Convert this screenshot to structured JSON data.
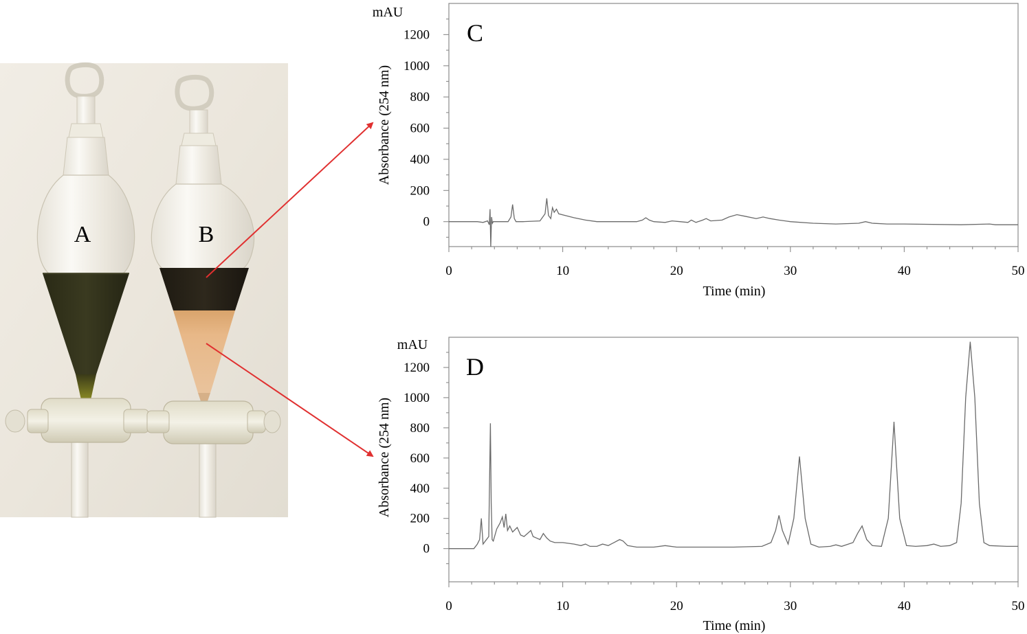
{
  "photo": {
    "labels": [
      "A",
      "B"
    ],
    "funnel_a_color": "#2c2c1a",
    "funnel_b_top_color": "#221d14",
    "funnel_b_bottom_color": "#e4b07a"
  },
  "arrow_color": "#e03030",
  "chart_data": [
    {
      "type": "line",
      "panel_label": "C",
      "title": "",
      "xlabel": "Time (min)",
      "ylabel": "Absorbance  (254 nm)",
      "y_unit": "mAU",
      "xlim": [
        0,
        50
      ],
      "ylim": [
        -160,
        1400
      ],
      "x_ticks": [
        0,
        10,
        20,
        30,
        40,
        50
      ],
      "y_ticks": [
        0,
        200,
        400,
        600,
        800,
        1000,
        1200
      ],
      "grid": false,
      "series": [
        {
          "x": [
            0,
            2.5,
            3.0,
            3.4,
            3.55,
            3.62,
            3.68,
            3.75,
            3.82,
            3.9,
            4.2,
            5.2,
            5.45,
            5.6,
            5.75,
            5.9,
            6.5,
            8.0,
            8.45,
            8.6,
            8.75,
            8.95,
            9.1,
            9.25,
            9.45,
            9.65,
            10.2,
            11.0,
            12.0,
            13.0,
            16.5,
            17.0,
            17.3,
            17.6,
            18.0,
            19.0,
            19.6,
            20.3,
            21.0,
            21.3,
            21.7,
            22.3,
            22.6,
            23.0,
            24.0,
            24.6,
            25.3,
            26.0,
            27.0,
            27.6,
            28.2,
            29.0,
            30.0,
            32.0,
            34.0,
            36.0,
            36.6,
            37.2,
            38.5,
            40.0,
            45.0,
            47.5,
            48.0,
            50.0
          ],
          "y": [
            0,
            0,
            -5,
            5,
            -20,
            80,
            -160,
            30,
            -10,
            0,
            0,
            0,
            30,
            110,
            20,
            0,
            0,
            5,
            50,
            150,
            40,
            20,
            90,
            60,
            80,
            50,
            40,
            25,
            10,
            0,
            0,
            10,
            25,
            10,
            0,
            -5,
            5,
            0,
            -5,
            10,
            -5,
            10,
            20,
            5,
            10,
            30,
            45,
            35,
            20,
            30,
            20,
            10,
            0,
            -10,
            -15,
            -10,
            0,
            -10,
            -15,
            -15,
            -20,
            -15,
            -20,
            -20
          ]
        }
      ]
    },
    {
      "type": "line",
      "panel_label": "D",
      "title": "",
      "xlabel": "Time (min)",
      "ylabel": "Absorbance  (254 nm)",
      "y_unit": "mAU",
      "xlim": [
        0,
        50
      ],
      "ylim": [
        -220,
        1400
      ],
      "x_ticks": [
        0,
        10,
        20,
        30,
        40,
        50
      ],
      "y_ticks": [
        0,
        200,
        400,
        600,
        800,
        1000,
        1200
      ],
      "grid": false,
      "series": [
        {
          "x": [
            0,
            2.2,
            2.5,
            2.7,
            2.85,
            3.0,
            3.2,
            3.5,
            3.65,
            3.72,
            3.8,
            3.9,
            4.2,
            4.5,
            4.7,
            4.85,
            5.0,
            5.15,
            5.35,
            5.6,
            6.0,
            6.3,
            6.6,
            6.9,
            7.2,
            7.4,
            7.7,
            8.0,
            8.3,
            8.6,
            8.9,
            9.3,
            10.0,
            11.0,
            11.6,
            12.0,
            12.4,
            13.0,
            13.5,
            14.0,
            14.5,
            15.0,
            15.3,
            15.7,
            16.5,
            18.0,
            19.0,
            20.0,
            25.0,
            27.5,
            28.3,
            28.7,
            29.0,
            29.3,
            29.8,
            30.3,
            30.8,
            31.3,
            31.8,
            32.5,
            33.5,
            34.0,
            34.5,
            35.5,
            35.9,
            36.3,
            36.7,
            37.2,
            38.0,
            38.6,
            39.1,
            39.6,
            40.2,
            41.0,
            42.0,
            42.6,
            43.2,
            44.0,
            44.6,
            45.0,
            45.4,
            45.8,
            46.2,
            46.6,
            47.0,
            47.5,
            49.0,
            50.0
          ],
          "y": [
            0,
            0,
            30,
            60,
            200,
            30,
            50,
            80,
            830,
            300,
            60,
            50,
            130,
            170,
            210,
            140,
            230,
            120,
            150,
            110,
            140,
            90,
            80,
            100,
            120,
            80,
            70,
            60,
            100,
            70,
            50,
            40,
            40,
            30,
            20,
            30,
            15,
            15,
            30,
            20,
            40,
            60,
            50,
            20,
            10,
            10,
            20,
            10,
            10,
            15,
            40,
            120,
            220,
            120,
            30,
            200,
            610,
            200,
            30,
            10,
            15,
            25,
            15,
            40,
            100,
            150,
            60,
            20,
            15,
            200,
            840,
            200,
            20,
            15,
            20,
            30,
            15,
            20,
            40,
            300,
            1000,
            1370,
            1000,
            300,
            40,
            20,
            15,
            15
          ]
        }
      ]
    }
  ]
}
